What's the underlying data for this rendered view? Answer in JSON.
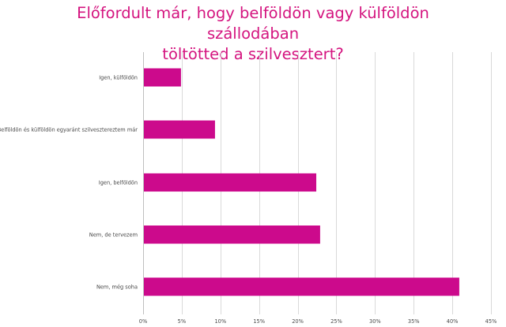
{
  "chart_data": {
    "type": "bar",
    "orientation": "horizontal",
    "title_lines": [
      "Előfordult már, hogy belföldön vagy külföldön szállodában",
      "töltötted a szilvesztert?"
    ],
    "categories": [
      "Igen, külföldön",
      "Belföldön és külföldön egyaránt szilvesztereztem már",
      "Igen, belföldön",
      "Nem, de tervezem",
      "Nem, még soha"
    ],
    "values": [
      4.9,
      9.3,
      22.4,
      22.9,
      40.9
    ],
    "xlim": [
      0,
      45
    ],
    "x_ticks": [
      0,
      5,
      10,
      15,
      20,
      25,
      30,
      35,
      40,
      45
    ],
    "x_tick_labels": [
      "0%",
      "5%",
      "10%",
      "15%",
      "20%",
      "25%",
      "30%",
      "35%",
      "40%",
      "45%"
    ],
    "grid": true,
    "legend": "none",
    "bar_color": "#cc0a8c"
  }
}
